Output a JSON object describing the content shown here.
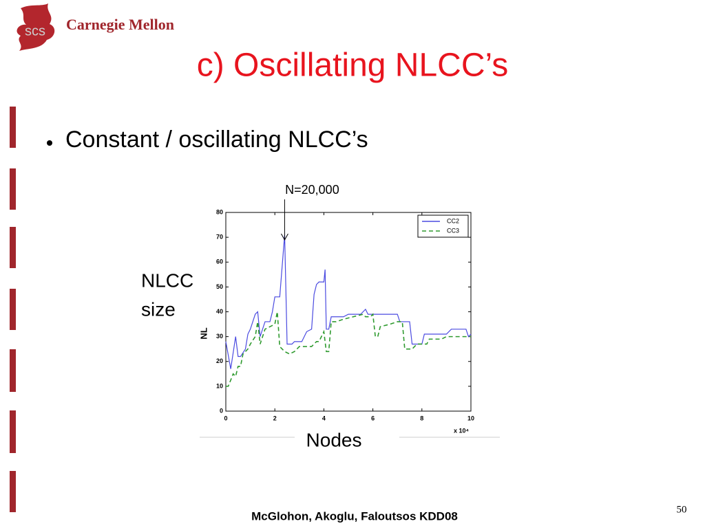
{
  "header": {
    "logo_badge": "scs",
    "logo_text": "Carnegie Mellon",
    "title": "c) Oscillating NLCC’s"
  },
  "bullets": [
    "Constant / oscillating NLCC’s"
  ],
  "footer": {
    "credit": "McGlohon, Akoglu, Faloutsos KDD08",
    "page": "50"
  },
  "chart_data": {
    "type": "line",
    "annotation": "N=20,000",
    "annotation_x": 2.4,
    "y_title_lines": [
      "NLCC",
      "size"
    ],
    "x_title": "Nodes",
    "y_label": "NL",
    "x_scale_label": "x 10⁴",
    "xlim": [
      0,
      10
    ],
    "xticks": [
      0,
      2,
      4,
      6,
      8,
      10
    ],
    "ylim": [
      0,
      80
    ],
    "yticks": [
      0,
      10,
      20,
      30,
      40,
      50,
      60,
      70,
      80
    ],
    "legend": "upper right",
    "series": [
      {
        "name": "CC2",
        "color": "#4a4ae0",
        "dash": "solid",
        "x": [
          0,
          0.2,
          0.4,
          0.5,
          0.6,
          0.8,
          0.9,
          1.0,
          1.2,
          1.3,
          1.4,
          1.6,
          1.8,
          1.9,
          2.0,
          2.2,
          2.4,
          2.5,
          2.7,
          2.8,
          3.1,
          3.3,
          3.5,
          3.6,
          3.7,
          3.8,
          4.0,
          4.05,
          4.1,
          4.2,
          4.3,
          4.8,
          5.0,
          5.5,
          5.7,
          5.8,
          7.0,
          7.1,
          7.5,
          7.6,
          8.0,
          8.1,
          9.0,
          9.2,
          9.8,
          9.9,
          10
        ],
        "values": [
          28,
          17,
          30,
          22,
          22,
          25,
          31,
          33,
          39,
          40,
          30,
          36,
          36,
          40,
          46,
          46,
          71,
          27,
          27,
          28,
          28,
          32,
          33,
          47,
          51,
          52,
          52,
          57,
          33,
          33,
          38,
          38,
          39,
          39,
          41,
          39,
          39,
          36,
          36,
          27,
          27,
          31,
          31,
          33,
          33,
          30,
          31
        ]
      },
      {
        "name": "CC3",
        "color": "#2e9a2e",
        "dash": "dashed",
        "x": [
          0,
          0.1,
          0.3,
          0.4,
          0.5,
          0.6,
          0.7,
          0.9,
          1.0,
          1.2,
          1.3,
          1.4,
          1.6,
          1.8,
          2.0,
          2.1,
          2.2,
          2.4,
          2.6,
          2.8,
          3.0,
          3.5,
          3.7,
          3.8,
          4.0,
          4.1,
          4.2,
          4.3,
          4.5,
          4.8,
          5.2,
          5.6,
          5.7,
          5.9,
          6.0,
          6.1,
          6.2,
          6.3,
          6.7,
          7.0,
          7.2,
          7.3,
          7.6,
          7.8,
          8.2,
          8.3,
          8.8,
          9.0,
          10
        ],
        "values": [
          10,
          10,
          15,
          14,
          18,
          18,
          23,
          25,
          27,
          30,
          36,
          27,
          33,
          34,
          35,
          40,
          26,
          24,
          23,
          24,
          26,
          26,
          28,
          28,
          32,
          24,
          24,
          36,
          36,
          37,
          38,
          39,
          38,
          38,
          39,
          30,
          30,
          34,
          35,
          36,
          36,
          25,
          25,
          27,
          27,
          29,
          29,
          30,
          30
        ]
      }
    ]
  }
}
